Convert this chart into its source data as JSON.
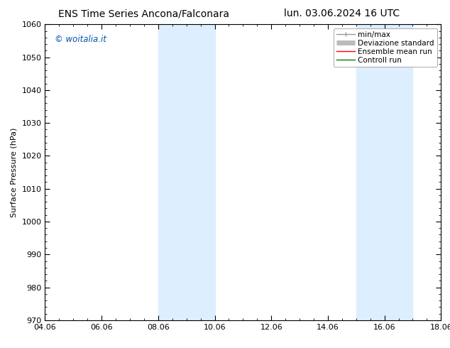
{
  "title_left": "ENS Time Series Ancona/Falconara",
  "title_right": "lun. 03.06.2024 16 UTC",
  "ylabel": "Surface Pressure (hPa)",
  "ylim": [
    970,
    1060
  ],
  "yticks": [
    970,
    980,
    990,
    1000,
    1010,
    1020,
    1030,
    1040,
    1050,
    1060
  ],
  "x_start_days": 0,
  "x_end_days": 14,
  "xtick_labels": [
    "04.06",
    "06.06",
    "08.06",
    "10.06",
    "12.06",
    "14.06",
    "16.06",
    "18.06"
  ],
  "xtick_positions_days": [
    0,
    2,
    4,
    6,
    8,
    10,
    12,
    14
  ],
  "shaded_bands": [
    {
      "x_start_days": 4.0,
      "x_end_days": 6.0,
      "color": "#ddeeff"
    },
    {
      "x_start_days": 11.0,
      "x_end_days": 13.0,
      "color": "#ddeeff"
    }
  ],
  "legend_items": [
    {
      "label": "min/max",
      "color": "#999999",
      "lw": 1.0
    },
    {
      "label": "Deviazione standard",
      "color": "#bbbbbb",
      "lw": 5
    },
    {
      "label": "Ensemble mean run",
      "color": "red",
      "lw": 1.0
    },
    {
      "label": "Controll run",
      "color": "green",
      "lw": 1.0
    }
  ],
  "watermark": "© woitalia.it",
  "watermark_color": "#0055aa",
  "background_color": "#ffffff",
  "plot_bg_color": "#ffffff",
  "title_fontsize": 10,
  "axis_label_fontsize": 8,
  "tick_fontsize": 8,
  "legend_fontsize": 7.5
}
